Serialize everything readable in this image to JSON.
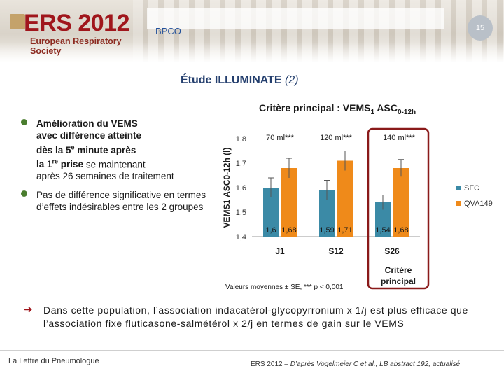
{
  "header": {
    "logo_title": "ERS 2012",
    "logo_subtitle": "European Respiratory Society",
    "section": "BPCO",
    "page_number": "15"
  },
  "slide": {
    "title_main": "Étude ILLUMINATE",
    "title_suffix": "(2)",
    "criterion_prefix": "Critère principal : VEMS",
    "criterion_sub1": "1",
    "criterion_mid": " ASC",
    "criterion_sub2": "0-12h"
  },
  "bullets": [
    {
      "bold_lines": [
        "Amélioration du VEMS",
        "avec différence atteinte",
        "dès la 5"
      ],
      "sup": "e",
      "after_sup": " minute après",
      "line4_bold": "la 1",
      "line4_sup": "re",
      "line4_bold2": " prise",
      "line4_rest": " se maintenant",
      "line5": "après 26 semaines de traitement"
    },
    {
      "text": "Pas de différence significative en termes d’effets indésirables entre les 2 groupes"
    }
  ],
  "chart_data": {
    "type": "bar",
    "categories": [
      "J1",
      "S12",
      "S26"
    ],
    "series": [
      {
        "name": "SFC",
        "values": [
          1.6,
          1.59,
          1.54
        ],
        "labels": [
          "1,6",
          "1,59",
          "1,54"
        ],
        "color": "#3b8aa6"
      },
      {
        "name": "QVA149",
        "values": [
          1.68,
          1.71,
          1.68
        ],
        "labels": [
          "1,68",
          "1,71",
          "1,68"
        ],
        "color": "#ef8a1a"
      }
    ],
    "error": {
      "SFC": [
        0.04,
        0.04,
        0.03
      ],
      "QVA149": [
        0.04,
        0.04,
        0.035
      ]
    },
    "ylim": [
      1.4,
      1.8
    ],
    "yticks": [
      "1,4",
      "1,5",
      "1,6",
      "1,7",
      "1,8"
    ],
    "ylabel": "VEMS1 ASC0-12h (l)",
    "differences": [
      "70 ml***",
      "120 ml***",
      "140 ml***"
    ],
    "note": "Valeurs moyennes ± SE, *** p < 0,001",
    "highlight_label": [
      "Critère",
      "principal"
    ]
  },
  "conclusion": {
    "text": "Dans cette population, l’association indacatérol-glycopyrronium x 1/j est plus efficace que l’association fixe fluticasone-salmétérol x 2/j en termes de gain sur le VEMS"
  },
  "footer": {
    "left": "La Lettre du Pneumologue",
    "right_prefix": "ERS 2012",
    "right_text": " – D’après Vogelmeier C et al., LB abstract 192, actualisé"
  },
  "colors": {
    "accent": "#a0161c",
    "title": "#243f6e",
    "bullet": "#4a7d2e",
    "sfc": "#3b8aa6",
    "qva": "#ef8a1a"
  }
}
